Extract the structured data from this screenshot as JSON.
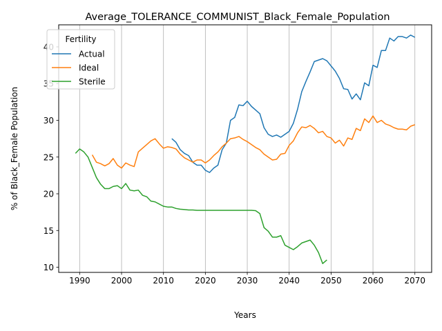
{
  "chart_data": {
    "type": "line",
    "title": "Average_TOLERANCE_COMMUNIST_Black_Female_Population",
    "xlabel": "Years",
    "ylabel": "% of Black_Female Population",
    "xlim": [
      1985,
      2074
    ],
    "ylim": [
      9.3,
      43.0
    ],
    "xticks": [
      1990,
      2000,
      2010,
      2020,
      2030,
      2040,
      2050,
      2060,
      2070
    ],
    "yticks": [
      10,
      15,
      20,
      25,
      30,
      35,
      40
    ],
    "grid": "x-only",
    "legend": {
      "title": "Fertility",
      "placement": "top-left"
    },
    "series": [
      {
        "name": "Actual",
        "color": "#1f77b4",
        "x": [
          2012,
          2013,
          2014,
          2015,
          2016,
          2017,
          2018,
          2019,
          2020,
          2021,
          2022,
          2023,
          2024,
          2025,
          2026,
          2027,
          2028,
          2029,
          2030,
          2031,
          2032,
          2033,
          2034,
          2035,
          2036,
          2037,
          2038,
          2039,
          2040,
          2041,
          2042,
          2043,
          2044,
          2045,
          2046,
          2047,
          2048,
          2049,
          2050,
          2051,
          2052,
          2053,
          2054,
          2055,
          2056,
          2057,
          2058,
          2059,
          2060,
          2061,
          2062,
          2063,
          2064,
          2065,
          2066,
          2067,
          2068,
          2069,
          2070
        ],
        "values": [
          27.5,
          27.0,
          26.0,
          25.5,
          25.2,
          24.3,
          23.9,
          23.9,
          23.2,
          22.9,
          23.5,
          23.9,
          26.0,
          26.9,
          30.0,
          30.4,
          32.1,
          32.0,
          32.6,
          31.9,
          31.4,
          30.9,
          29.0,
          28.1,
          27.8,
          28.0,
          27.7,
          28.1,
          28.5,
          29.6,
          31.5,
          33.9,
          35.3,
          36.6,
          38.0,
          38.2,
          38.4,
          38.1,
          37.4,
          36.7,
          35.7,
          34.3,
          34.2,
          32.9,
          33.6,
          32.8,
          35.1,
          34.7,
          37.5,
          37.2,
          39.5,
          39.5,
          41.2,
          40.8,
          41.4,
          41.4,
          41.2,
          41.6,
          41.3
        ]
      },
      {
        "name": "Ideal",
        "color": "#ff7f0e",
        "x": [
          1993,
          1994,
          1995,
          1996,
          1997,
          1998,
          1999,
          2000,
          2001,
          2002,
          2003,
          2004,
          2005,
          2006,
          2007,
          2008,
          2009,
          2010,
          2011,
          2012,
          2013,
          2014,
          2015,
          2016,
          2017,
          2018,
          2019,
          2020,
          2021,
          2022,
          2023,
          2024,
          2025,
          2026,
          2027,
          2028,
          2029,
          2030,
          2031,
          2032,
          2033,
          2034,
          2035,
          2036,
          2037,
          2038,
          2039,
          2040,
          2041,
          2042,
          2043,
          2044,
          2045,
          2046,
          2047,
          2048,
          2049,
          2050,
          2051,
          2052,
          2053,
          2054,
          2055,
          2056,
          2057,
          2058,
          2059,
          2060,
          2061,
          2062,
          2063,
          2064,
          2065,
          2066,
          2067,
          2068,
          2069,
          2070
        ],
        "values": [
          25.3,
          24.3,
          24.1,
          23.8,
          24.1,
          24.8,
          23.9,
          23.5,
          24.2,
          23.9,
          23.7,
          25.7,
          26.2,
          26.7,
          27.2,
          27.5,
          26.8,
          26.2,
          26.4,
          26.3,
          26.1,
          25.4,
          24.9,
          24.6,
          24.3,
          24.6,
          24.6,
          24.2,
          24.6,
          25.2,
          25.7,
          26.4,
          26.9,
          27.5,
          27.6,
          27.8,
          27.4,
          27.1,
          26.7,
          26.3,
          26.0,
          25.4,
          25.0,
          24.6,
          24.7,
          25.4,
          25.5,
          26.6,
          27.2,
          28.3,
          29.1,
          29.0,
          29.3,
          28.9,
          28.3,
          28.5,
          27.8,
          27.6,
          26.9,
          27.3,
          26.5,
          27.6,
          27.4,
          28.9,
          28.6,
          30.2,
          29.7,
          30.6,
          29.7,
          30.0,
          29.5,
          29.3,
          29.0,
          28.8,
          28.8,
          28.7,
          29.2,
          29.4
        ]
      },
      {
        "name": "Sterile",
        "color": "#2ca02c",
        "x": [
          1989,
          1990,
          1991,
          1992,
          1993,
          1994,
          1995,
          1996,
          1997,
          1998,
          1999,
          2000,
          2001,
          2002,
          2003,
          2004,
          2005,
          2006,
          2007,
          2008,
          2009,
          2010,
          2011,
          2012,
          2013,
          2014,
          2015,
          2016,
          2017,
          2018,
          2019,
          2020,
          2021,
          2022,
          2023,
          2024,
          2025,
          2026,
          2027,
          2028,
          2029,
          2030,
          2031,
          2032,
          2033,
          2034,
          2035,
          2036,
          2037,
          2038,
          2039,
          2040,
          2041,
          2042,
          2043,
          2044,
          2045,
          2046,
          2047,
          2048,
          2049
        ],
        "values": [
          25.5,
          26.1,
          25.7,
          25.0,
          23.6,
          22.2,
          21.3,
          20.7,
          20.7,
          21.0,
          21.1,
          20.7,
          21.4,
          20.5,
          20.4,
          20.5,
          19.8,
          19.6,
          19.0,
          18.9,
          18.6,
          18.3,
          18.2,
          18.2,
          18.0,
          17.9,
          17.85,
          17.8,
          17.8,
          17.75,
          17.75,
          17.75,
          17.75,
          17.75,
          17.75,
          17.75,
          17.75,
          17.75,
          17.75,
          17.75,
          17.75,
          17.75,
          17.75,
          17.7,
          17.3,
          15.4,
          14.9,
          14.1,
          14.1,
          14.3,
          13.0,
          12.7,
          12.4,
          12.8,
          13.3,
          13.5,
          13.7,
          13.0,
          12.0,
          10.5,
          11.0
        ]
      }
    ]
  }
}
